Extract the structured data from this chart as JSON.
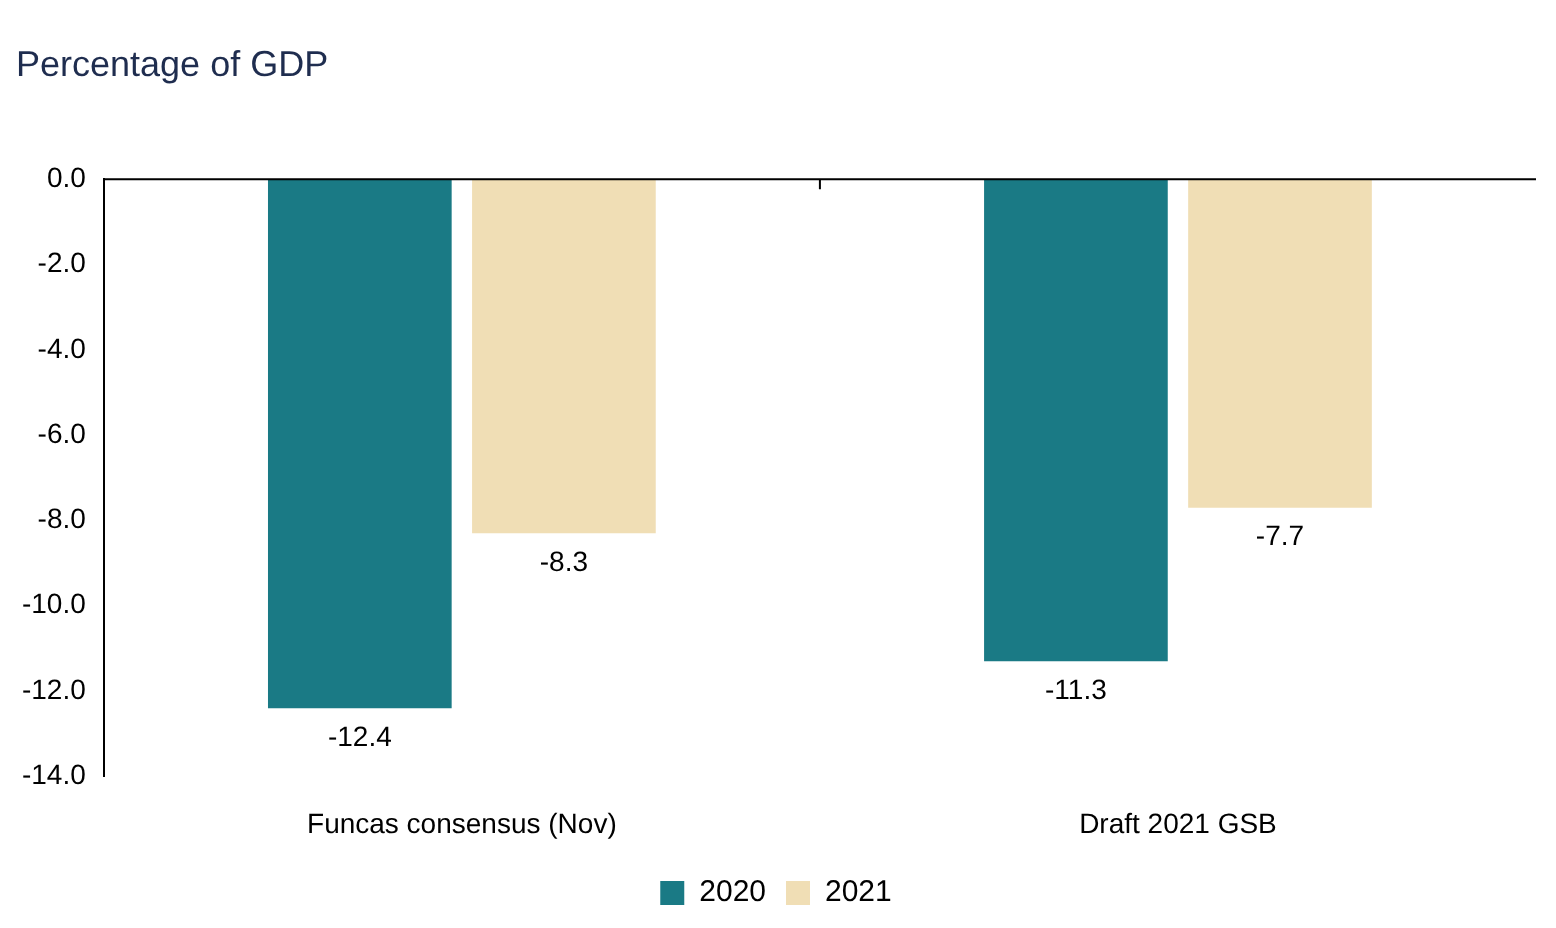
{
  "chart_data": {
    "type": "bar",
    "title": "Percentage of GDP",
    "categories": [
      "Funcas consensus (Nov)",
      "Draft 2021 GSB"
    ],
    "series": [
      {
        "name": "2020",
        "color": "#1a7a85",
        "values": [
          -12.4,
          -11.3
        ]
      },
      {
        "name": "2021",
        "color": "#f0deb5",
        "values": [
          -8.3,
          -7.7
        ]
      }
    ],
    "ylim": [
      -14,
      0
    ],
    "yticks": [
      {
        "value": -14,
        "label": "-14.0"
      },
      {
        "value": -12,
        "label": "-12.0"
      },
      {
        "value": -10,
        "label": "-10.0"
      },
      {
        "value": -8,
        "label": "-8.0"
      },
      {
        "value": -6,
        "label": "-6.0"
      },
      {
        "value": -4,
        "label": "-4.0"
      },
      {
        "value": -2,
        "label": "-2.0"
      },
      {
        "value": 0,
        "label": "0.0"
      }
    ],
    "grid": false,
    "legend": "bottom",
    "data_labels": true
  }
}
